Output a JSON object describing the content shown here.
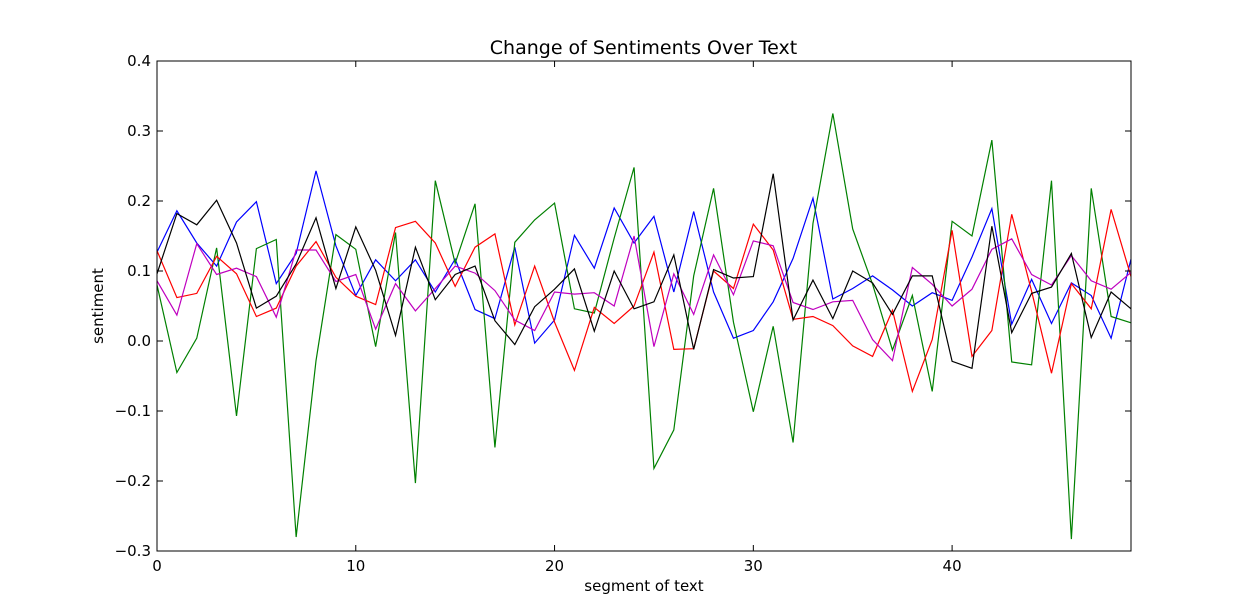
{
  "chart_data": {
    "type": "line",
    "title": "Change of Sentiments Over Text",
    "xlabel": "segment of text",
    "ylabel": "sentiment",
    "xlim": [
      0,
      49
    ],
    "ylim": [
      -0.3,
      0.4
    ],
    "grid": false,
    "legend": "none",
    "x_ticks": [
      0,
      10,
      20,
      30,
      40
    ],
    "x_tick_labels": [
      "0",
      "10",
      "20",
      "30",
      "40"
    ],
    "y_ticks": [
      0.4,
      0.3,
      0.2,
      0.1,
      0.0,
      -0.1,
      -0.2,
      -0.3
    ],
    "y_tick_labels": [
      "0.4",
      "0.3",
      "0.2",
      "0.1",
      "0.0",
      "−0.1",
      "−0.2",
      "−0.3"
    ],
    "x": [
      0,
      1,
      2,
      3,
      4,
      5,
      6,
      7,
      8,
      9,
      10,
      11,
      12,
      13,
      14,
      15,
      16,
      17,
      18,
      19,
      20,
      21,
      22,
      23,
      24,
      25,
      26,
      27,
      28,
      29,
      30,
      31,
      32,
      33,
      34,
      35,
      36,
      37,
      38,
      39,
      40,
      41,
      42,
      43,
      44,
      45,
      46,
      47,
      48,
      49
    ],
    "series": [
      {
        "color": "#0000ff",
        "values": [
          0.127,
          0.186,
          0.14,
          0.107,
          0.17,
          0.199,
          0.082,
          0.125,
          0.243,
          0.136,
          0.065,
          0.116,
          0.086,
          0.116,
          0.07,
          0.117,
          0.045,
          0.032,
          0.134,
          -0.003,
          0.03,
          0.151,
          0.104,
          0.19,
          0.14,
          0.178,
          0.07,
          0.185,
          0.07,
          0.004,
          0.015,
          0.056,
          0.118,
          0.204,
          0.06,
          0.075,
          0.093,
          0.073,
          0.05,
          0.069,
          0.058,
          0.12,
          0.189,
          0.024,
          0.088,
          0.025,
          0.083,
          0.065,
          0.004,
          0.117
        ]
      },
      {
        "color": "#008000",
        "values": [
          0.08,
          -0.045,
          0.004,
          0.133,
          -0.107,
          0.132,
          0.145,
          -0.28,
          -0.028,
          0.152,
          0.131,
          -0.008,
          0.155,
          -0.203,
          0.229,
          0.111,
          0.196,
          -0.152,
          0.141,
          0.173,
          0.197,
          0.046,
          0.04,
          0.147,
          0.248,
          -0.182,
          -0.127,
          0.093,
          0.218,
          0.027,
          -0.101,
          0.021,
          -0.145,
          0.168,
          0.325,
          0.16,
          0.081,
          -0.013,
          0.065,
          -0.072,
          0.171,
          0.15,
          0.287,
          -0.03,
          -0.034,
          0.229,
          -0.283,
          0.218,
          0.035,
          0.026
        ]
      },
      {
        "color": "#ff0000",
        "values": [
          0.129,
          0.062,
          0.068,
          0.121,
          0.096,
          0.035,
          0.047,
          0.107,
          0.142,
          0.091,
          0.064,
          0.052,
          0.162,
          0.171,
          0.14,
          0.078,
          0.134,
          0.153,
          0.023,
          0.107,
          0.027,
          -0.042,
          0.048,
          0.025,
          0.05,
          0.127,
          -0.012,
          -0.011,
          0.1,
          0.075,
          0.167,
          0.13,
          0.031,
          0.035,
          0.022,
          -0.007,
          -0.022,
          0.044,
          -0.072,
          0.002,
          0.158,
          -0.022,
          0.015,
          0.181,
          0.071,
          -0.046,
          0.082,
          0.046,
          0.188,
          0.092
        ]
      },
      {
        "color": "#bf00bf",
        "values": [
          0.086,
          0.037,
          0.139,
          0.095,
          0.104,
          0.092,
          0.034,
          0.13,
          0.13,
          0.085,
          0.095,
          0.017,
          0.082,
          0.043,
          0.075,
          0.107,
          0.097,
          0.072,
          0.03,
          0.015,
          0.07,
          0.067,
          0.069,
          0.05,
          0.15,
          -0.008,
          0.096,
          0.038,
          0.123,
          0.066,
          0.143,
          0.136,
          0.055,
          0.045,
          0.056,
          0.058,
          0.002,
          -0.028,
          0.105,
          0.081,
          0.05,
          0.074,
          0.131,
          0.146,
          0.095,
          0.08,
          0.122,
          0.086,
          0.074,
          0.098
        ]
      },
      {
        "color": "#000000",
        "values": [
          0.096,
          0.182,
          0.166,
          0.201,
          0.14,
          0.047,
          0.064,
          0.11,
          0.176,
          0.075,
          0.163,
          0.101,
          0.008,
          0.134,
          0.059,
          0.095,
          0.107,
          0.029,
          -0.005,
          0.049,
          0.074,
          0.103,
          0.014,
          0.1,
          0.046,
          0.056,
          0.123,
          -0.012,
          0.102,
          0.09,
          0.092,
          0.239,
          0.03,
          0.087,
          0.032,
          0.1,
          0.083,
          0.038,
          0.093,
          0.093,
          -0.029,
          -0.039,
          0.164,
          0.012,
          0.068,
          0.077,
          0.125,
          0.005,
          0.07,
          0.046
        ]
      }
    ]
  }
}
